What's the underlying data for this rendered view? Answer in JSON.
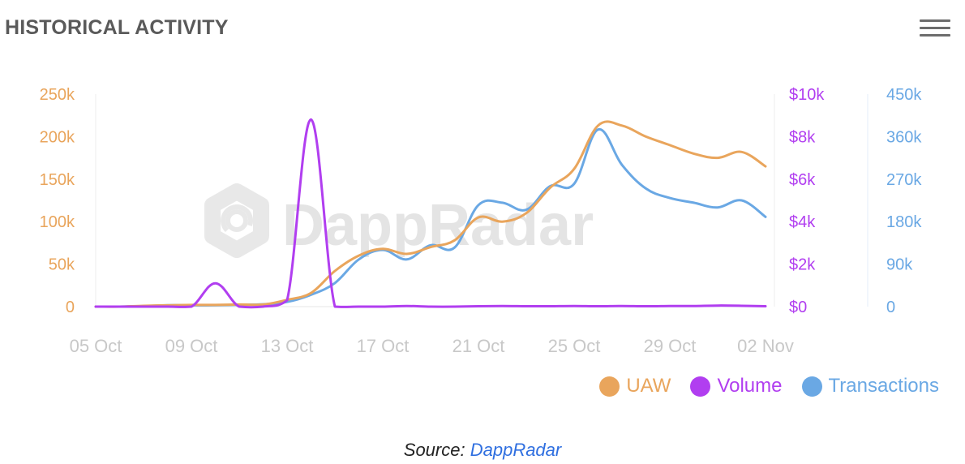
{
  "header": {
    "title": "HISTORICAL ACTIVITY",
    "menu_icon": "hamburger-menu-icon"
  },
  "watermark": {
    "text": "DappRadar",
    "icon": "dappradar-logo-icon"
  },
  "caption": {
    "prefix": "Source:",
    "link_text": "DappRadar"
  },
  "colors": {
    "uaw": "#e9a55c",
    "volume": "#b13ef0",
    "transactions": "#6aa8e4",
    "axis_text": "#c8c8c8"
  },
  "chart_data": {
    "type": "line",
    "title": "HISTORICAL ACTIVITY",
    "x_ticks": [
      "05 Oct",
      "09 Oct",
      "13 Oct",
      "17 Oct",
      "21 Oct",
      "25 Oct",
      "29 Oct",
      "02 Nov"
    ],
    "x": [
      "05 Oct",
      "06 Oct",
      "07 Oct",
      "08 Oct",
      "09 Oct",
      "10 Oct",
      "11 Oct",
      "12 Oct",
      "13 Oct",
      "14 Oct",
      "15 Oct",
      "16 Oct",
      "17 Oct",
      "18 Oct",
      "19 Oct",
      "20 Oct",
      "21 Oct",
      "22 Oct",
      "23 Oct",
      "24 Oct",
      "25 Oct",
      "26 Oct",
      "27 Oct",
      "28 Oct",
      "29 Oct",
      "30 Oct",
      "31 Oct",
      "01 Nov",
      "02 Nov"
    ],
    "axes": {
      "left": {
        "ticks": [
          "0",
          "50k",
          "100k",
          "150k",
          "200k",
          "250k"
        ],
        "range": [
          0,
          250000
        ]
      },
      "mid": {
        "ticks": [
          "$0",
          "$2k",
          "$4k",
          "$6k",
          "$8k",
          "$10k"
        ],
        "range": [
          0,
          10000
        ]
      },
      "right": {
        "ticks": [
          "0",
          "90k",
          "180k",
          "270k",
          "360k",
          "450k"
        ],
        "range": [
          0,
          450000
        ]
      }
    },
    "series": [
      {
        "name": "UAW",
        "axis": "left",
        "values": [
          0,
          0,
          1000,
          1500,
          2000,
          2000,
          2500,
          2500,
          8000,
          16000,
          42000,
          60000,
          68000,
          62000,
          70000,
          78000,
          105000,
          100000,
          110000,
          140000,
          162000,
          213000,
          213000,
          200000,
          190000,
          180000,
          175000,
          182000,
          165000
        ]
      },
      {
        "name": "Volume",
        "axis": "mid",
        "values": [
          0,
          0,
          0,
          0,
          0,
          1100,
          0,
          0,
          300,
          8800,
          0,
          0,
          0,
          30,
          0,
          0,
          20,
          30,
          20,
          20,
          30,
          20,
          30,
          20,
          30,
          30,
          50,
          40,
          20
        ]
      },
      {
        "name": "Transactions",
        "axis": "right",
        "values": [
          0,
          0,
          1000,
          3000,
          3000,
          3000,
          4000,
          5000,
          10000,
          25000,
          50000,
          100000,
          120000,
          100000,
          130000,
          125000,
          215000,
          220000,
          205000,
          255000,
          260000,
          375000,
          300000,
          250000,
          230000,
          220000,
          210000,
          225000,
          190000
        ]
      }
    ],
    "grid": false,
    "legend_position": "bottom-right"
  }
}
